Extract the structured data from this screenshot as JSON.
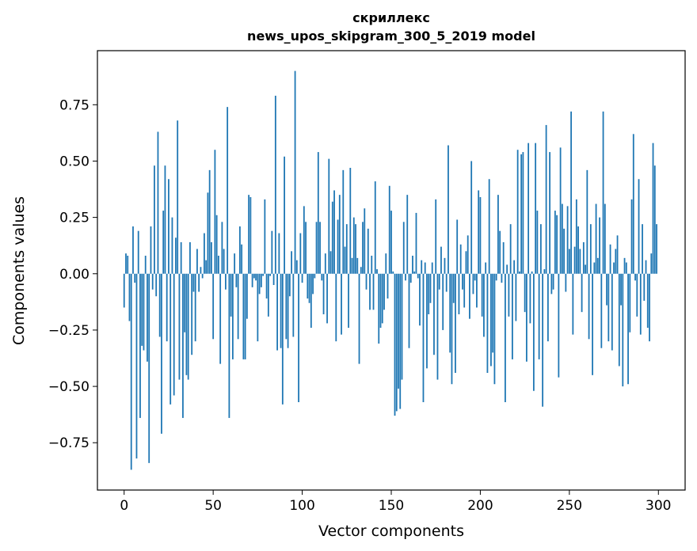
{
  "chart_data": {
    "type": "bar",
    "title": "скриллекс",
    "subtitle": "news_upos_skipgram_300_5_2019 model",
    "xlabel": "Vector components",
    "ylabel": "Components values",
    "xlim": [
      -15,
      315
    ],
    "ylim": [
      -0.96,
      0.99
    ],
    "xticks": [
      0,
      50,
      100,
      150,
      200,
      250,
      300
    ],
    "yticks": [
      -0.75,
      -0.5,
      -0.25,
      0.0,
      0.25,
      0.5,
      0.75
    ],
    "ytick_labels": [
      "−0.75",
      "−0.50",
      "−0.25",
      "0.00",
      "0.25",
      "0.50",
      "0.75"
    ],
    "grid": false,
    "bar_color": "#1f77b4",
    "series": [
      {
        "values": [
          -0.15,
          0.09,
          0.08,
          -0.21,
          -0.87,
          0.21,
          -0.04,
          -0.82,
          0.19,
          -0.64,
          -0.32,
          -0.34,
          0.08,
          -0.39,
          -0.84,
          0.21,
          -0.07,
          0.48,
          -0.1,
          0.63,
          -0.28,
          -0.71,
          0.28,
          0.48,
          -0.3,
          0.42,
          -0.58,
          0.25,
          -0.54,
          0.16,
          0.68,
          -0.47,
          0.14,
          -0.64,
          -0.26,
          -0.45,
          -0.47,
          0.14,
          -0.36,
          -0.08,
          -0.3,
          0.11,
          -0.08,
          0.03,
          -0.02,
          0.18,
          0.06,
          0.36,
          0.46,
          0.14,
          -0.29,
          0.55,
          0.26,
          0.08,
          -0.4,
          0.23,
          0.11,
          -0.07,
          0.74,
          -0.64,
          -0.19,
          -0.38,
          0.09,
          -0.06,
          -0.29,
          0.21,
          0.13,
          -0.38,
          -0.38,
          -0.2,
          0.35,
          0.34,
          -0.06,
          -0.02,
          -0.03,
          -0.3,
          -0.09,
          -0.06,
          -0.01,
          0.33,
          -0.11,
          -0.19,
          -0.01,
          0.19,
          -0.05,
          0.79,
          -0.34,
          0.18,
          -0.33,
          -0.58,
          0.52,
          -0.29,
          -0.33,
          -0.1,
          0.1,
          -0.28,
          0.9,
          0.06,
          -0.57,
          0.18,
          -0.04,
          0.3,
          0.23,
          -0.11,
          -0.13,
          -0.24,
          -0.09,
          -0.02,
          0.23,
          0.54,
          0.23,
          -0.03,
          -0.18,
          0.09,
          -0.22,
          0.51,
          0.1,
          0.32,
          0.37,
          -0.3,
          0.24,
          0.35,
          -0.27,
          0.46,
          0.12,
          0.22,
          -0.24,
          0.47,
          0.07,
          0.25,
          0.22,
          0.07,
          -0.4,
          0.03,
          0.23,
          0.29,
          -0.07,
          0.2,
          -0.16,
          0.08,
          -0.16,
          0.41,
          0.02,
          -0.31,
          -0.24,
          -0.22,
          -0.16,
          0.09,
          -0.11,
          0.39,
          0.28,
          0.01,
          -0.63,
          -0.61,
          -0.51,
          -0.6,
          -0.47,
          0.23,
          -0.03,
          0.35,
          -0.33,
          -0.04,
          0.08,
          0.01,
          0.27,
          -0.02,
          -0.23,
          0.06,
          -0.57,
          0.05,
          -0.42,
          -0.18,
          -0.13,
          0.05,
          -0.36,
          0.33,
          -0.47,
          -0.07,
          0.12,
          -0.25,
          0.07,
          -0.08,
          0.57,
          -0.35,
          -0.49,
          -0.13,
          -0.44,
          0.24,
          -0.18,
          0.13,
          -0.07,
          -0.15,
          0.1,
          0.17,
          -0.2,
          0.5,
          -0.09,
          -0.03,
          -0.15,
          0.37,
          0.34,
          -0.19,
          -0.28,
          0.05,
          -0.44,
          0.42,
          -0.41,
          -0.35,
          -0.49,
          -0.03,
          0.35,
          0.19,
          -0.04,
          0.14,
          -0.57,
          0.04,
          -0.19,
          0.22,
          -0.38,
          0.06,
          -0.21,
          0.55,
          0.01,
          0.53,
          0.54,
          -0.17,
          -0.39,
          0.58,
          -0.22,
          0.01,
          -0.52,
          0.58,
          0.28,
          -0.38,
          0.22,
          -0.59,
          0.02,
          0.66,
          -0.3,
          0.54,
          -0.09,
          -0.07,
          0.28,
          0.26,
          -0.46,
          0.56,
          0.31,
          0.2,
          -0.08,
          0.3,
          0.11,
          0.72,
          -0.27,
          0.12,
          0.33,
          0.21,
          0.11,
          -0.17,
          0.14,
          0.04,
          0.46,
          -0.29,
          0.22,
          -0.45,
          0.05,
          0.31,
          0.07,
          0.25,
          -0.33,
          0.72,
          0.31,
          -0.14,
          -0.3,
          0.13,
          -0.34,
          0.05,
          0.11,
          0.17,
          -0.41,
          -0.14,
          -0.5,
          0.07,
          0.05,
          -0.49,
          -0.26,
          0.33,
          0.62,
          -0.03,
          -0.19,
          0.42,
          -0.27,
          0.22,
          -0.12,
          0.06,
          -0.24,
          -0.3,
          0.09,
          0.58,
          0.48,
          0.22
        ]
      }
    ]
  }
}
